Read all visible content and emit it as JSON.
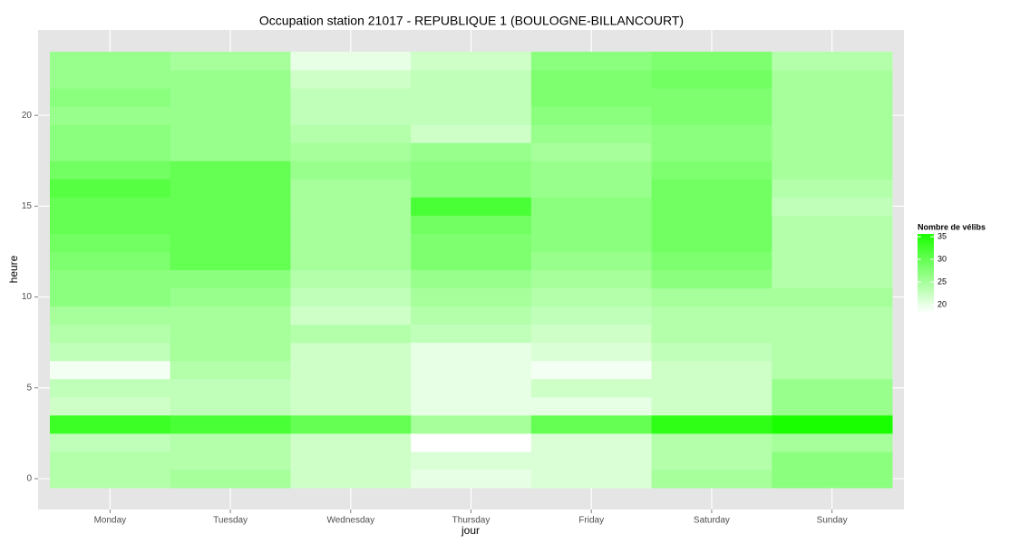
{
  "chart_data": {
    "type": "heatmap",
    "title": "Occupation station 21017 - REPUBLIQUE 1 (BOULOGNE-BILLANCOURT)",
    "x_label": "jour",
    "y_label": "heure",
    "categories": [
      "Monday",
      "Tuesday",
      "Wednesday",
      "Thursday",
      "Friday",
      "Saturday",
      "Sunday"
    ],
    "y": [
      0,
      1,
      2,
      3,
      4,
      5,
      6,
      7,
      8,
      9,
      10,
      11,
      12,
      13,
      14,
      15,
      16,
      17,
      18,
      19,
      20,
      21,
      22,
      23
    ],
    "values": [
      [
        24,
        24,
        23,
        33,
        22,
        23,
        19,
        23,
        24,
        25,
        27,
        27,
        28,
        29,
        30,
        30,
        31,
        29,
        27,
        27,
        26,
        27,
        26,
        26
      ],
      [
        25,
        24,
        24,
        32,
        23,
        23,
        24,
        25,
        25,
        25,
        26,
        27,
        30,
        30,
        30,
        30,
        30,
        30,
        26,
        26,
        26,
        26,
        26,
        25
      ],
      [
        22,
        22,
        22,
        30,
        22,
        22,
        22,
        22,
        24,
        22,
        23,
        24,
        25,
        25,
        25,
        25,
        25,
        26,
        25,
        24,
        23,
        23,
        22,
        20
      ],
      [
        20,
        21,
        18.2,
        25,
        20,
        20,
        20,
        20,
        23,
        24,
        25,
        26,
        28,
        28,
        29,
        32,
        27,
        27,
        26,
        22,
        23,
        23,
        23,
        22
      ],
      [
        21,
        21,
        21,
        30,
        20,
        22,
        19,
        21,
        22,
        23,
        24,
        25,
        26,
        27,
        27,
        27,
        26,
        26,
        25,
        26,
        27,
        28,
        28,
        27
      ],
      [
        25,
        24,
        24,
        34,
        22,
        22,
        22,
        23,
        24,
        24,
        25,
        27,
        28,
        29,
        29,
        29,
        29,
        28,
        27,
        27,
        28,
        28,
        29,
        28
      ],
      [
        27,
        27,
        25,
        35.6,
        26,
        26,
        24,
        24,
        24,
        24,
        25,
        24,
        24,
        24,
        24,
        23,
        24,
        25,
        25,
        25,
        25,
        25,
        25,
        24
      ]
    ],
    "ylim": [
      -1.7,
      24.7
    ],
    "yticks": [
      0,
      5,
      10,
      15,
      20
    ],
    "grid": true,
    "colorbar": {
      "title": "Nombre de vélibs",
      "lim": [
        18.2,
        35.6
      ],
      "ticks": [
        20,
        25,
        30,
        35
      ],
      "low": "#ffffff",
      "high": "#1aff00"
    }
  }
}
